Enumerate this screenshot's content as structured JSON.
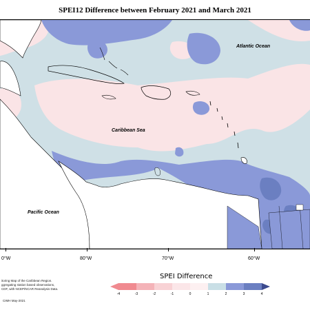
{
  "title": "SPEI12 Difference between February 2021 and March 2021",
  "labels": {
    "atlantic": "Atlantic Ocean",
    "caribbean": "Caribbean Sea",
    "pacific": "Pacific Ocean"
  },
  "longitudes": [
    "0°W",
    "80°W",
    "70°W",
    "60°W"
  ],
  "legend": {
    "title": "SPEI Difference",
    "ticks": [
      "-4",
      "-3",
      "-2",
      "-1",
      "0",
      "1",
      "2",
      "3",
      "4"
    ],
    "colors": [
      "#f08a90",
      "#f4b3b8",
      "#f8d2d5",
      "#fbe6e8",
      "#fdf0f1",
      "#c9dfe6",
      "#8a99d8",
      "#6b7fc1",
      "#3c4a8e"
    ]
  },
  "notes": {
    "line1": "itoring Map of the Caribbean Region.",
    "line2": "ggregating station based observations,",
    "line3": "CDF, with NCEP/NCAR Reanalysis Data."
  },
  "credit": "CIMH May-2021"
}
